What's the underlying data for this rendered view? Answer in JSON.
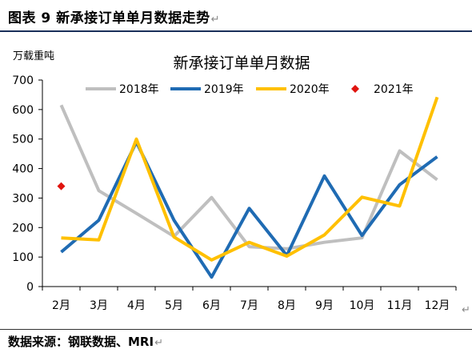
{
  "figure": {
    "title": "图表 9  新承接订单单月数据走势",
    "return_mark": "↵",
    "source": "数据来源：钢联数据、MRI",
    "source_return_mark": "↵",
    "side_mark": "↵"
  },
  "chart_data": {
    "type": "line",
    "title": "新承接订单单月数据",
    "unit_label": "万载重吨",
    "categories": [
      "2月",
      "3月",
      "4月",
      "5月",
      "6月",
      "7月",
      "8月",
      "9月",
      "10月",
      "11月",
      "12月"
    ],
    "ylim": [
      0,
      700
    ],
    "yticks": [
      0,
      100,
      200,
      300,
      400,
      500,
      600,
      700
    ],
    "grid": false,
    "legend_position": "top",
    "series": [
      {
        "name": "2018年",
        "color": "#bfbfbf",
        "marker": "none",
        "values": [
          615,
          325,
          248,
          170,
          302,
          135,
          128,
          150,
          165,
          460,
          362
        ]
      },
      {
        "name": "2019年",
        "color": "#1f6bb3",
        "marker": "none",
        "values": [
          117,
          225,
          490,
          225,
          32,
          265,
          105,
          375,
          173,
          345,
          440
        ]
      },
      {
        "name": "2020年",
        "color": "#ffc000",
        "marker": "none",
        "values": [
          165,
          158,
          500,
          168,
          90,
          150,
          103,
          175,
          303,
          273,
          642
        ]
      },
      {
        "name": "2021年",
        "color": "#e0140f",
        "marker": "diamond",
        "values": [
          340,
          null,
          null,
          null,
          null,
          null,
          null,
          null,
          null,
          null,
          null
        ]
      }
    ]
  }
}
